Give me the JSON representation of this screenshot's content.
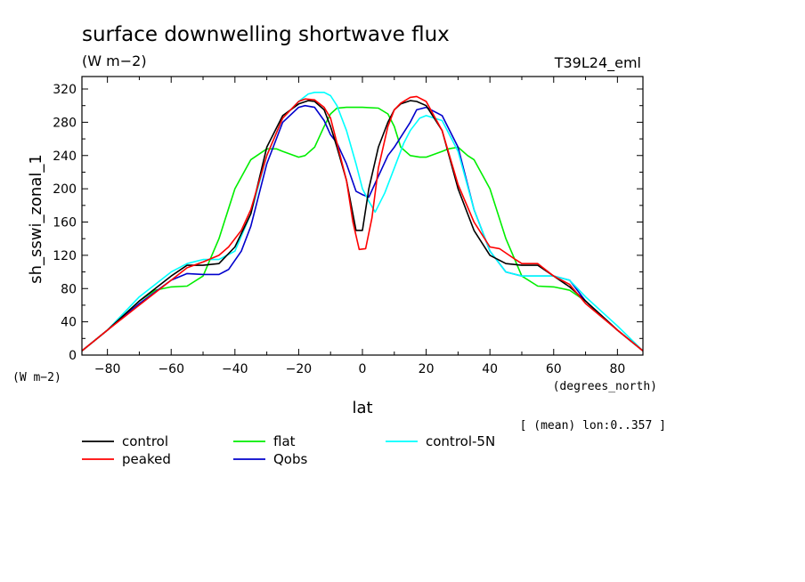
{
  "chart_data": {
    "type": "line",
    "title": "surface downwelling shortwave flux",
    "units": "(W m−2)",
    "run_label": "T39L24_eml",
    "ylabel": "sh_sswi_zonal_1",
    "yunits": "(W m−2)",
    "xlabel": "lat",
    "xunits": "(degrees_north)",
    "note": "[ (mean) lon:0..357 ]",
    "xlim": [
      -88,
      88
    ],
    "ylim": [
      0,
      335
    ],
    "xticks": [
      -80,
      -60,
      -40,
      -20,
      0,
      20,
      40,
      60,
      80
    ],
    "yticks": [
      0,
      40,
      80,
      120,
      160,
      200,
      240,
      280,
      320
    ],
    "grid": false,
    "legend_position": "bottom-left",
    "series": [
      {
        "name": "control",
        "color": "#000000",
        "x": [
          -88,
          -80,
          -70,
          -60,
          -55,
          -50,
          -45,
          -40,
          -35,
          -30,
          -25,
          -20,
          -17,
          -15,
          -12,
          -10,
          -8,
          -5,
          -2,
          0,
          2,
          5,
          8,
          10,
          12,
          15,
          17,
          20,
          25,
          30,
          35,
          40,
          45,
          50,
          55,
          60,
          65,
          70,
          80,
          88
        ],
        "y": [
          5,
          30,
          65,
          95,
          108,
          108,
          110,
          130,
          170,
          250,
          288,
          302,
          306,
          305,
          295,
          275,
          250,
          210,
          150,
          150,
          200,
          250,
          280,
          295,
          302,
          306,
          305,
          300,
          270,
          200,
          150,
          120,
          110,
          108,
          108,
          95,
          82,
          65,
          30,
          5
        ]
      },
      {
        "name": "peaked",
        "color": "#ff0000",
        "x": [
          -88,
          -80,
          -70,
          -60,
          -55,
          -50,
          -45,
          -42,
          -38,
          -35,
          -30,
          -25,
          -20,
          -18,
          -15,
          -12,
          -10,
          -8,
          -5,
          -3,
          -1,
          1,
          3,
          5,
          8,
          10,
          12,
          15,
          17,
          20,
          25,
          30,
          35,
          40,
          43,
          48,
          50,
          55,
          60,
          65,
          70,
          80,
          88
        ],
        "y": [
          5,
          30,
          60,
          90,
          105,
          112,
          120,
          130,
          150,
          175,
          240,
          285,
          305,
          308,
          307,
          298,
          285,
          255,
          210,
          160,
          127,
          128,
          165,
          225,
          275,
          295,
          303,
          310,
          311,
          305,
          270,
          205,
          160,
          130,
          128,
          115,
          110,
          110,
          95,
          85,
          62,
          30,
          5
        ]
      },
      {
        "name": "flat",
        "color": "#00ee00",
        "x": [
          -88,
          -80,
          -70,
          -65,
          -60,
          -55,
          -50,
          -45,
          -40,
          -35,
          -30,
          -27,
          -25,
          -20,
          -18,
          -15,
          -12,
          -10,
          -8,
          -5,
          0,
          5,
          8,
          10,
          12,
          15,
          18,
          20,
          25,
          27,
          30,
          33,
          35,
          40,
          45,
          50,
          55,
          60,
          65,
          70,
          80,
          88
        ],
        "y": [
          5,
          30,
          65,
          78,
          82,
          83,
          95,
          140,
          200,
          235,
          248,
          248,
          245,
          238,
          240,
          250,
          275,
          290,
          297,
          298,
          298,
          297,
          290,
          275,
          250,
          240,
          238,
          238,
          245,
          248,
          250,
          240,
          235,
          200,
          140,
          95,
          83,
          82,
          78,
          65,
          30,
          5
        ]
      },
      {
        "name": "control-5N",
        "color": "#00ffff",
        "x": [
          -88,
          -80,
          -70,
          -60,
          -55,
          -50,
          -45,
          -40,
          -35,
          -30,
          -25,
          -20,
          -17,
          -15,
          -12,
          -10,
          -8,
          -5,
          -2,
          0,
          2,
          4,
          7,
          10,
          13,
          15,
          18,
          20,
          25,
          30,
          35,
          40,
          45,
          50,
          55,
          60,
          65,
          70,
          80,
          88
        ],
        "y": [
          5,
          30,
          70,
          100,
          110,
          115,
          115,
          125,
          170,
          240,
          285,
          305,
          314,
          316,
          316,
          312,
          300,
          270,
          230,
          200,
          185,
          172,
          195,
          225,
          255,
          270,
          285,
          288,
          282,
          245,
          175,
          125,
          100,
          95,
          95,
          95,
          90,
          70,
          35,
          5
        ]
      },
      {
        "name": "Qobs",
        "color": "#0000cc",
        "x": [
          -88,
          -80,
          -70,
          -60,
          -55,
          -50,
          -45,
          -42,
          -38,
          -35,
          -30,
          -25,
          -20,
          -18,
          -15,
          -12,
          -10,
          -8,
          -5,
          -2,
          0,
          2,
          5,
          8,
          10,
          12,
          15,
          17,
          20,
          25,
          30,
          35,
          40,
          45,
          50,
          55,
          60,
          65,
          70,
          80,
          88
        ],
        "y": [
          5,
          30,
          62,
          90,
          98,
          97,
          97,
          103,
          125,
          155,
          230,
          280,
          298,
          300,
          298,
          282,
          265,
          255,
          230,
          197,
          193,
          190,
          215,
          240,
          250,
          262,
          280,
          295,
          298,
          288,
          250,
          175,
          125,
          100,
          95,
          95,
          95,
          90,
          65,
          30,
          5
        ]
      }
    ]
  }
}
